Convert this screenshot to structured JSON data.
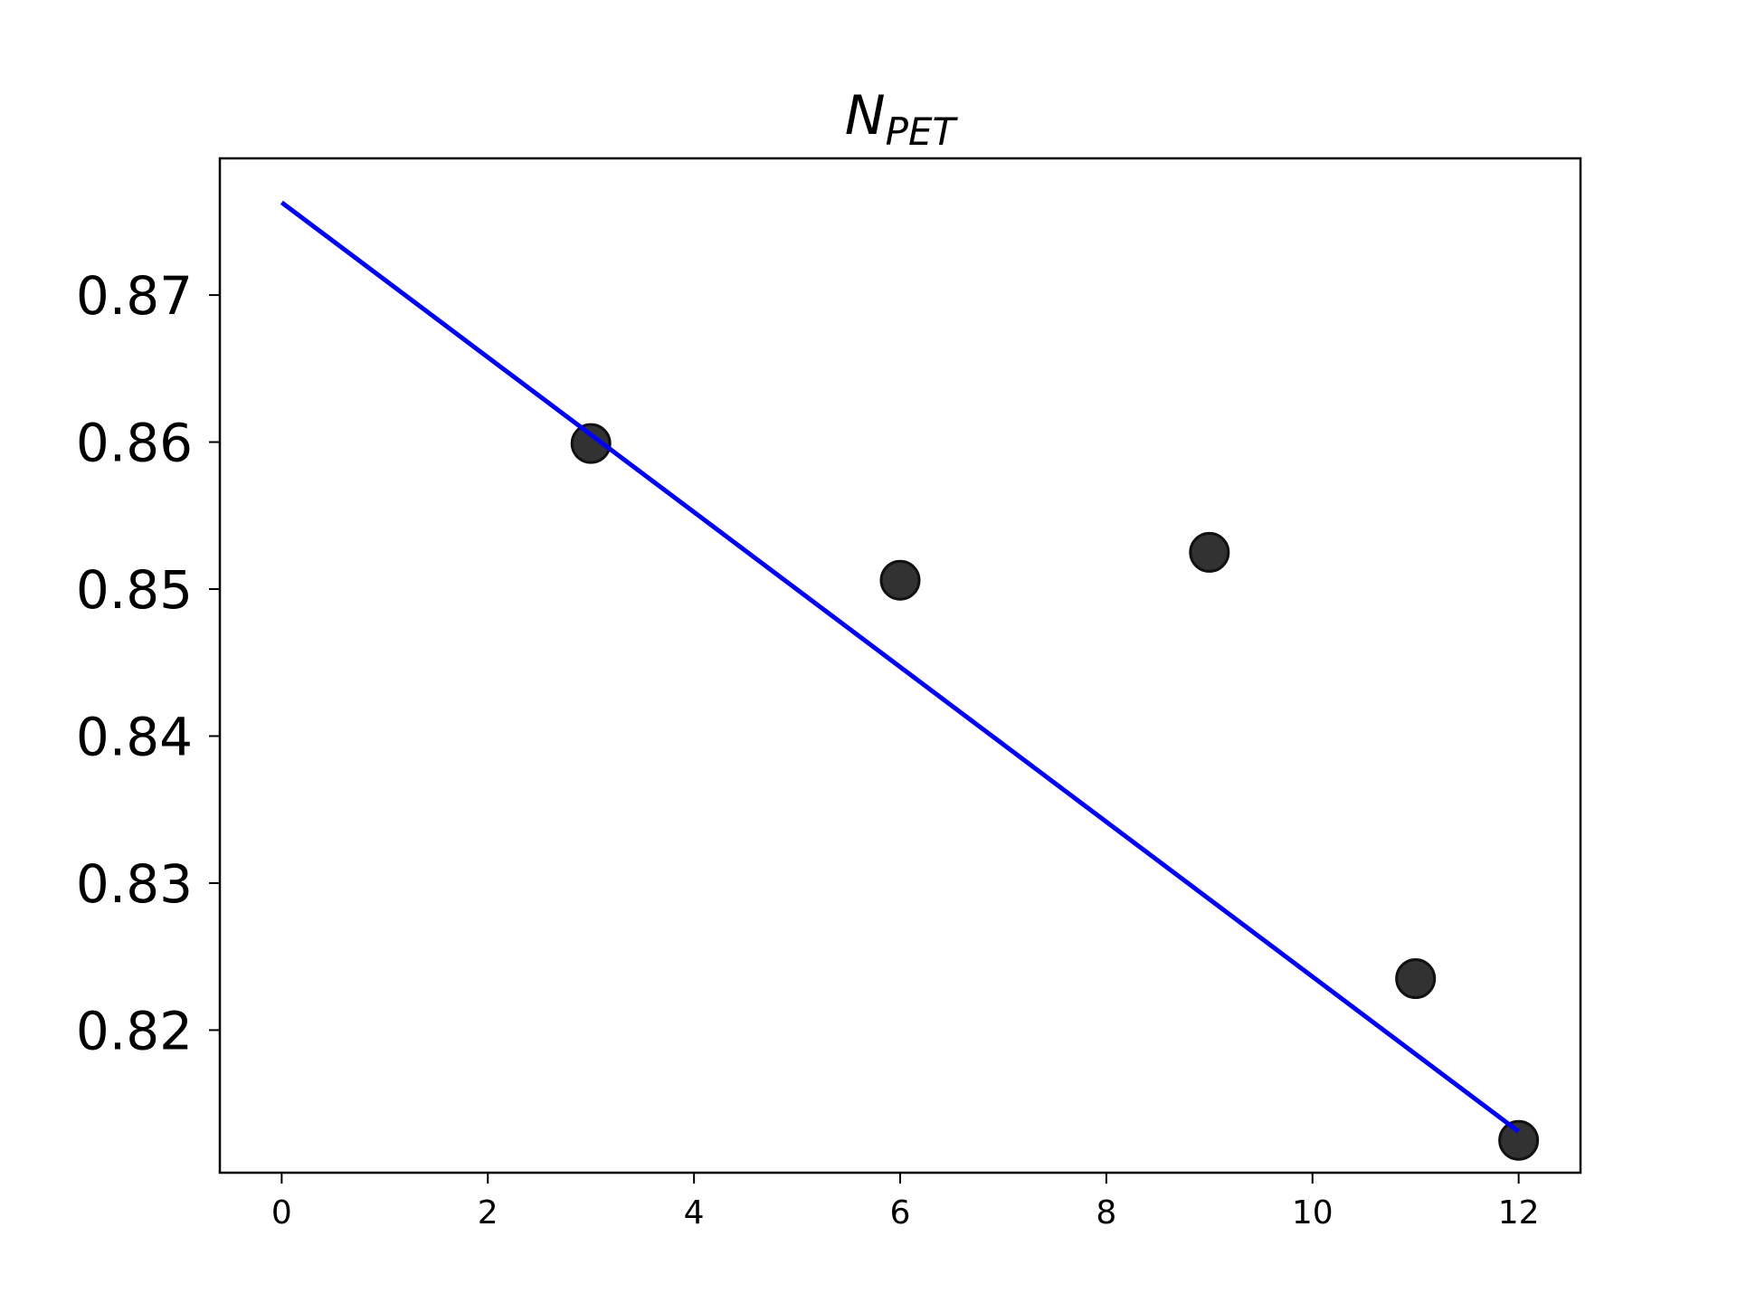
{
  "chart_data": {
    "type": "scatter",
    "title": "N",
    "title_subscript": "PET",
    "xlabel": "",
    "ylabel": "",
    "xlim": [
      -0.6,
      12.6
    ],
    "ylim": [
      0.8103,
      0.8793
    ],
    "xticks": [
      0,
      2,
      4,
      6,
      8,
      10,
      12
    ],
    "xtick_labels": [
      "0",
      "2",
      "4",
      "6",
      "8",
      "10",
      "12"
    ],
    "yticks": [
      0.82,
      0.83,
      0.84,
      0.85,
      0.86,
      0.87
    ],
    "ytick_labels": [
      "0.82",
      "0.83",
      "0.84",
      "0.85",
      "0.86",
      "0.87"
    ],
    "grid": false,
    "series": [
      {
        "kind": "scatter",
        "x": [
          3,
          6,
          9,
          11,
          12
        ],
        "y": [
          0.8599,
          0.8506,
          0.8525,
          0.8235,
          0.8125
        ],
        "color": "#222222"
      },
      {
        "kind": "line",
        "x": [
          0,
          12
        ],
        "y": [
          0.8763,
          0.8131
        ],
        "color": "#0000ff"
      }
    ]
  }
}
